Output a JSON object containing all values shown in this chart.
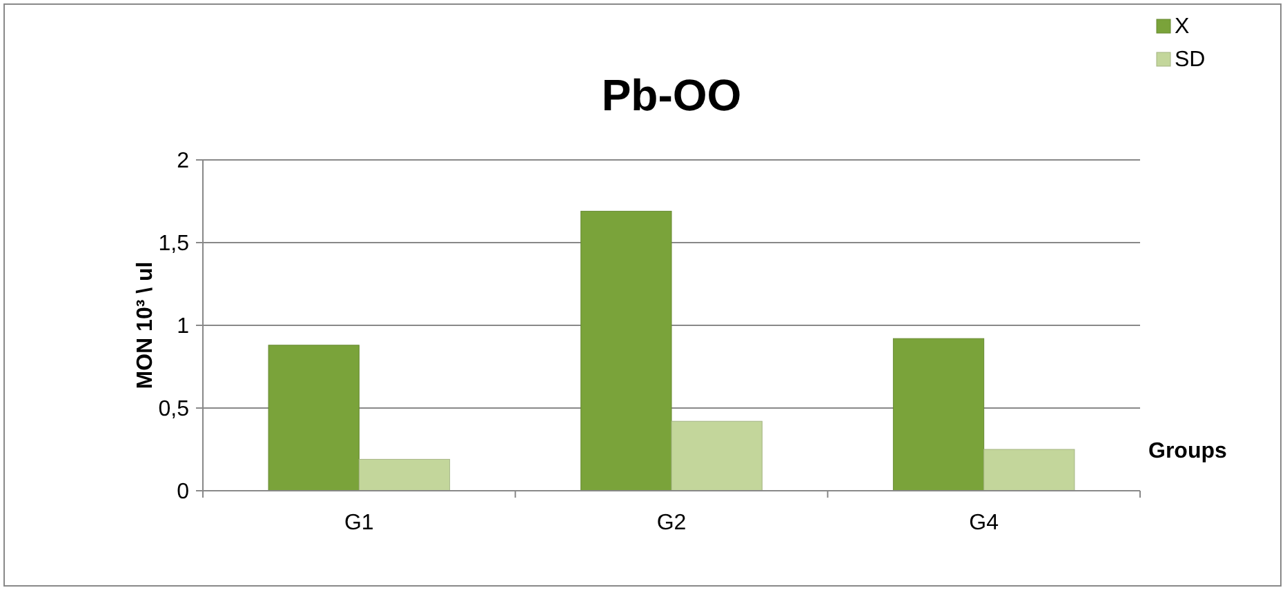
{
  "chart_data": {
    "type": "bar",
    "title": "Pb-OO",
    "xlabel": "Groups",
    "ylabel": "MON 10³ \\ ul",
    "categories": [
      "G1",
      "G2",
      "G4"
    ],
    "series": [
      {
        "name": "X",
        "color": "#7aa33a",
        "values": [
          0.88,
          1.69,
          0.92
        ]
      },
      {
        "name": "SD",
        "color": "#c3d69b",
        "values": [
          0.19,
          0.42,
          0.25
        ]
      }
    ],
    "ylim": [
      0,
      2
    ],
    "yticks": [
      0,
      {
        "value": 0.5,
        "label": "0,5"
      },
      1,
      {
        "value": 1.5,
        "label": "1,5"
      },
      2
    ],
    "grid": "y",
    "legend": "top right"
  }
}
